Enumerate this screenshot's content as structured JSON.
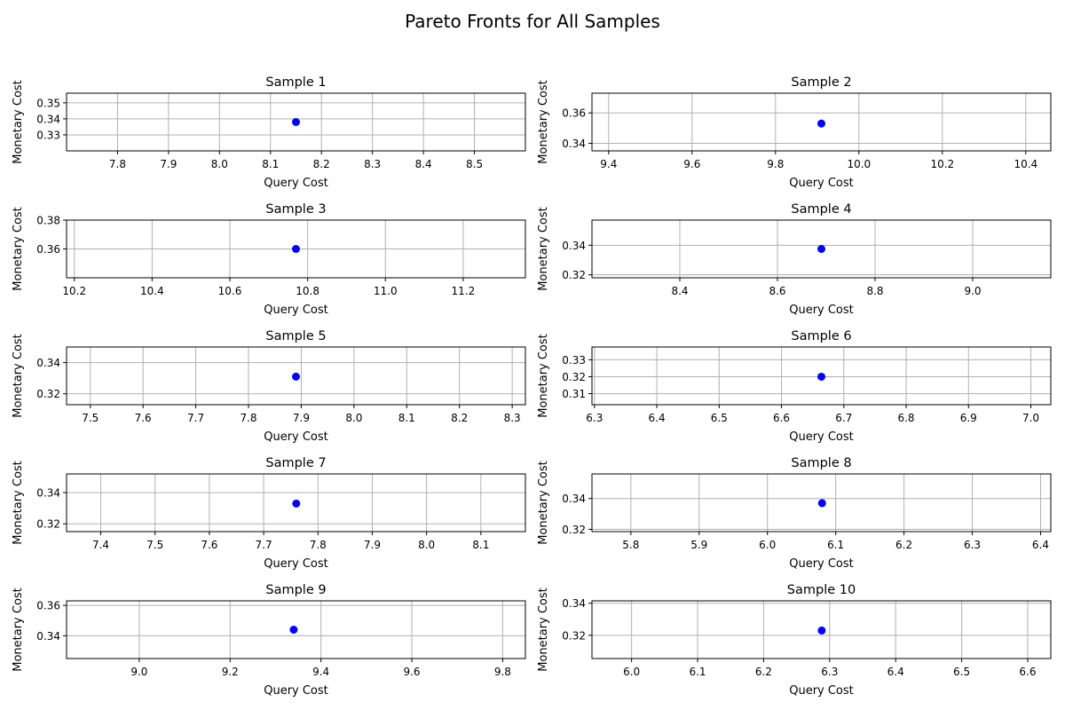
{
  "title": "Pareto Fronts for All Samples",
  "style": {
    "point_color": "#0000ff",
    "grid_color": "#b0b0b0"
  },
  "chart_data": [
    {
      "type": "scatter",
      "title": "Sample 1",
      "xlabel": "Query Cost",
      "ylabel": "Monetary Cost",
      "xlim": [
        7.7,
        8.6
      ],
      "ylim": [
        0.32,
        0.356
      ],
      "grid": true,
      "xticks": [
        "7.8",
        "8.0",
        "8.1",
        "8.2",
        "8.3",
        "8.4",
        "8.5",
        "7.9"
      ],
      "yticks": [
        "0.33",
        "0.34",
        "0.35"
      ],
      "points": [
        {
          "x": 8.15,
          "y": 0.338
        }
      ]
    },
    {
      "type": "scatter",
      "title": "Sample 2",
      "xlabel": "Query Cost",
      "ylabel": "Monetary Cost",
      "xlim": [
        9.36,
        10.46
      ],
      "ylim": [
        0.335,
        0.373
      ],
      "grid": true,
      "xticks": [
        "9.4",
        "9.6",
        "9.8",
        "10.0",
        "10.2",
        "10.4"
      ],
      "yticks": [
        "0.34",
        "0.36"
      ],
      "points": [
        {
          "x": 9.91,
          "y": 0.353
        }
      ]
    },
    {
      "type": "scatter",
      "title": "Sample 3",
      "xlabel": "Query Cost",
      "ylabel": "Monetary Cost",
      "xlim": [
        10.18,
        11.36
      ],
      "ylim": [
        0.34,
        0.38
      ],
      "grid": true,
      "xticks": [
        "10.2",
        "10.4",
        "10.6",
        "10.8",
        "11.0",
        "11.2"
      ],
      "yticks": [
        "0.36",
        "0.38"
      ],
      "points": [
        {
          "x": 10.77,
          "y": 0.36
        }
      ]
    },
    {
      "type": "scatter",
      "title": "Sample 4",
      "xlabel": "Query Cost",
      "ylabel": "Monetary Cost",
      "xlim": [
        8.22,
        9.16
      ],
      "ylim": [
        0.318,
        0.357
      ],
      "grid": true,
      "xticks": [
        "8.4",
        "8.6",
        "8.8",
        "9.0"
      ],
      "yticks": [
        "0.32",
        "0.34"
      ],
      "points": [
        {
          "x": 8.69,
          "y": 0.3375
        }
      ]
    },
    {
      "type": "scatter",
      "title": "Sample 5",
      "xlabel": "Query Cost",
      "ylabel": "Monetary Cost",
      "xlim": [
        7.455,
        8.325
      ],
      "ylim": [
        0.313,
        0.35
      ],
      "grid": true,
      "xticks": [
        "7.5",
        "7.6",
        "7.7",
        "7.8",
        "7.9",
        "8.0",
        "8.1",
        "8.2",
        "8.3"
      ],
      "yticks": [
        "0.32",
        "0.34"
      ],
      "points": [
        {
          "x": 7.89,
          "y": 0.331
        }
      ]
    },
    {
      "type": "scatter",
      "title": "Sample 6",
      "xlabel": "Query Cost",
      "ylabel": "Monetary Cost",
      "xlim": [
        6.296,
        7.032
      ],
      "ylim": [
        0.3035,
        0.3375
      ],
      "grid": true,
      "xticks": [
        "6.3",
        "6.4",
        "6.5",
        "6.6",
        "6.7",
        "6.8",
        "6.9",
        "7.0"
      ],
      "yticks": [
        "0.31",
        "0.32",
        "0.33"
      ],
      "points": [
        {
          "x": 6.664,
          "y": 0.32
        }
      ]
    },
    {
      "type": "scatter",
      "title": "Sample 7",
      "xlabel": "Query Cost",
      "ylabel": "Monetary Cost",
      "xlim": [
        7.337,
        8.182
      ],
      "ylim": [
        0.315,
        0.352
      ],
      "grid": true,
      "xticks": [
        "7.4",
        "7.5",
        "7.6",
        "7.7",
        "7.8",
        "7.9",
        "8.0",
        "8.1"
      ],
      "yticks": [
        "0.32",
        "0.34"
      ],
      "points": [
        {
          "x": 7.76,
          "y": 0.333
        }
      ]
    },
    {
      "type": "scatter",
      "title": "Sample 8",
      "xlabel": "Query Cost",
      "ylabel": "Monetary Cost",
      "xlim": [
        5.743,
        6.415
      ],
      "ylim": [
        0.3185,
        0.356
      ],
      "grid": true,
      "xticks": [
        "5.8",
        "5.9",
        "6.0",
        "6.1",
        "6.2",
        "6.3",
        "6.4"
      ],
      "yticks": [
        "0.32",
        "0.34"
      ],
      "points": [
        {
          "x": 6.08,
          "y": 0.337
        }
      ]
    },
    {
      "type": "scatter",
      "title": "Sample 9",
      "xlabel": "Query Cost",
      "ylabel": "Monetary Cost",
      "xlim": [
        8.84,
        9.85
      ],
      "ylim": [
        0.325,
        0.363
      ],
      "grid": true,
      "xticks": [
        "9.0",
        "9.2",
        "9.4",
        "9.6",
        "9.8"
      ],
      "yticks": [
        "0.34",
        "0.36"
      ],
      "points": [
        {
          "x": 9.34,
          "y": 0.344
        }
      ]
    },
    {
      "type": "scatter",
      "title": "Sample 10",
      "xlabel": "Query Cost",
      "ylabel": "Monetary Cost",
      "xlim": [
        5.94,
        6.635
      ],
      "ylim": [
        0.3055,
        0.3415
      ],
      "grid": true,
      "xticks": [
        "6.0",
        "6.1",
        "6.2",
        "6.3",
        "6.4",
        "6.5",
        "6.6"
      ],
      "yticks": [
        "0.32",
        "0.34"
      ],
      "points": [
        {
          "x": 6.288,
          "y": 0.323
        }
      ]
    }
  ]
}
